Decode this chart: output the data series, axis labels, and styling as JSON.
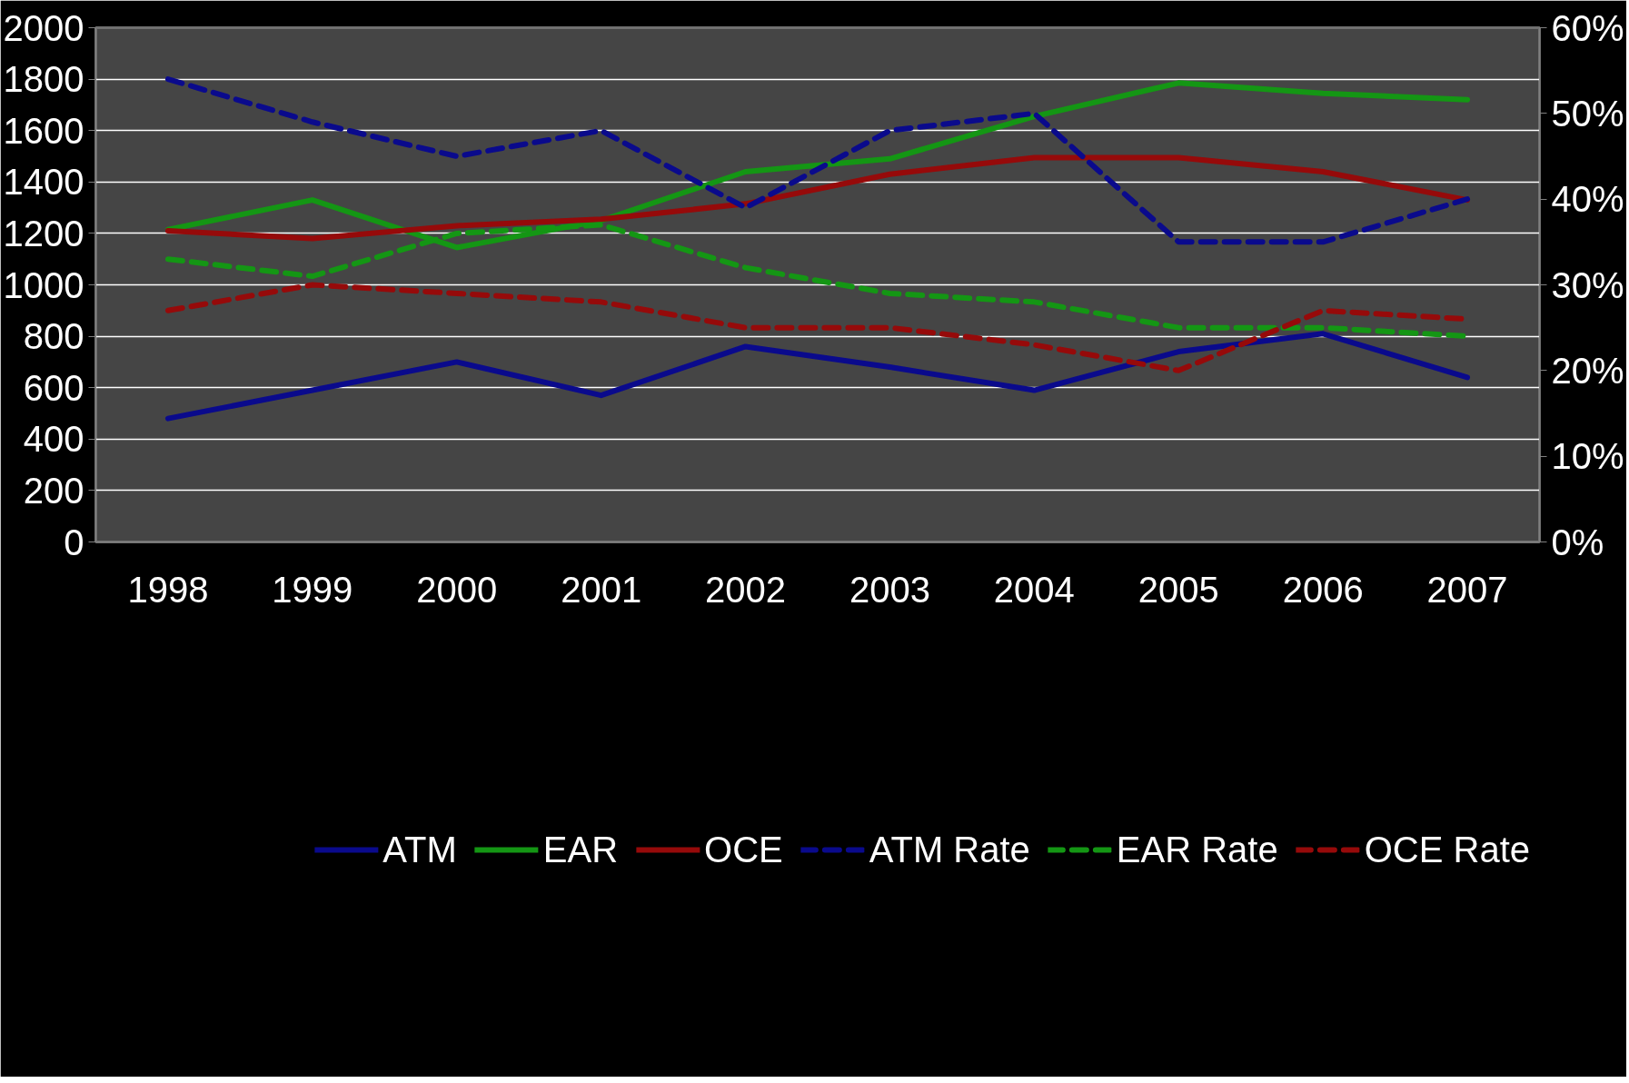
{
  "chart_data": {
    "type": "line",
    "categories": [
      "1998",
      "1999",
      "2000",
      "2001",
      "2002",
      "2003",
      "2004",
      "2005",
      "2006",
      "2007"
    ],
    "ylim": [
      0,
      2000
    ],
    "yticks": [
      0,
      200,
      400,
      600,
      800,
      1000,
      1200,
      1400,
      1600,
      1800,
      2000
    ],
    "y2lim": [
      0,
      60
    ],
    "y2ticks": [
      {
        "value": 0,
        "label": "0%"
      },
      {
        "value": 10,
        "label": "10%"
      },
      {
        "value": 20,
        "label": "20%"
      },
      {
        "value": 30,
        "label": "30%"
      },
      {
        "value": 40,
        "label": "40%"
      },
      {
        "value": 50,
        "label": "50%"
      },
      {
        "value": 60,
        "label": "60%"
      }
    ],
    "grid": "y",
    "legend": "bottom",
    "line_style": "solid",
    "series": [
      {
        "name": "ATM",
        "color": "#0a0a8c",
        "values": [
          480,
          590,
          700,
          570,
          760,
          680,
          590,
          740,
          810,
          640
        ]
      },
      {
        "name": "EAR",
        "color": "#149614",
        "values": [
          1215,
          1330,
          1145,
          1250,
          1440,
          1490,
          1655,
          1785,
          1745,
          1720
        ]
      },
      {
        "name": "OCE",
        "color": "#960a0a",
        "values": [
          1210,
          1180,
          1230,
          1255,
          1315,
          1430,
          1495,
          1495,
          1440,
          1330
        ]
      },
      {
        "name": "ATM Rate",
        "color": "#0a0a8c",
        "axis": "y2",
        "line_style": "dashed",
        "values": [
          54,
          49,
          45,
          48,
          39,
          48,
          50,
          35,
          35,
          40
        ]
      },
      {
        "name": "EAR Rate",
        "color": "#149614",
        "axis": "y2",
        "line_style": "dashed",
        "values": [
          33,
          31,
          36,
          37,
          32,
          29,
          28,
          25,
          25,
          24
        ]
      },
      {
        "name": "OCE Rate",
        "color": "#960a0a",
        "axis": "y2",
        "line_style": "dashed",
        "values": [
          27,
          30,
          29,
          28,
          25,
          25,
          23,
          20,
          27,
          26
        ]
      }
    ]
  }
}
